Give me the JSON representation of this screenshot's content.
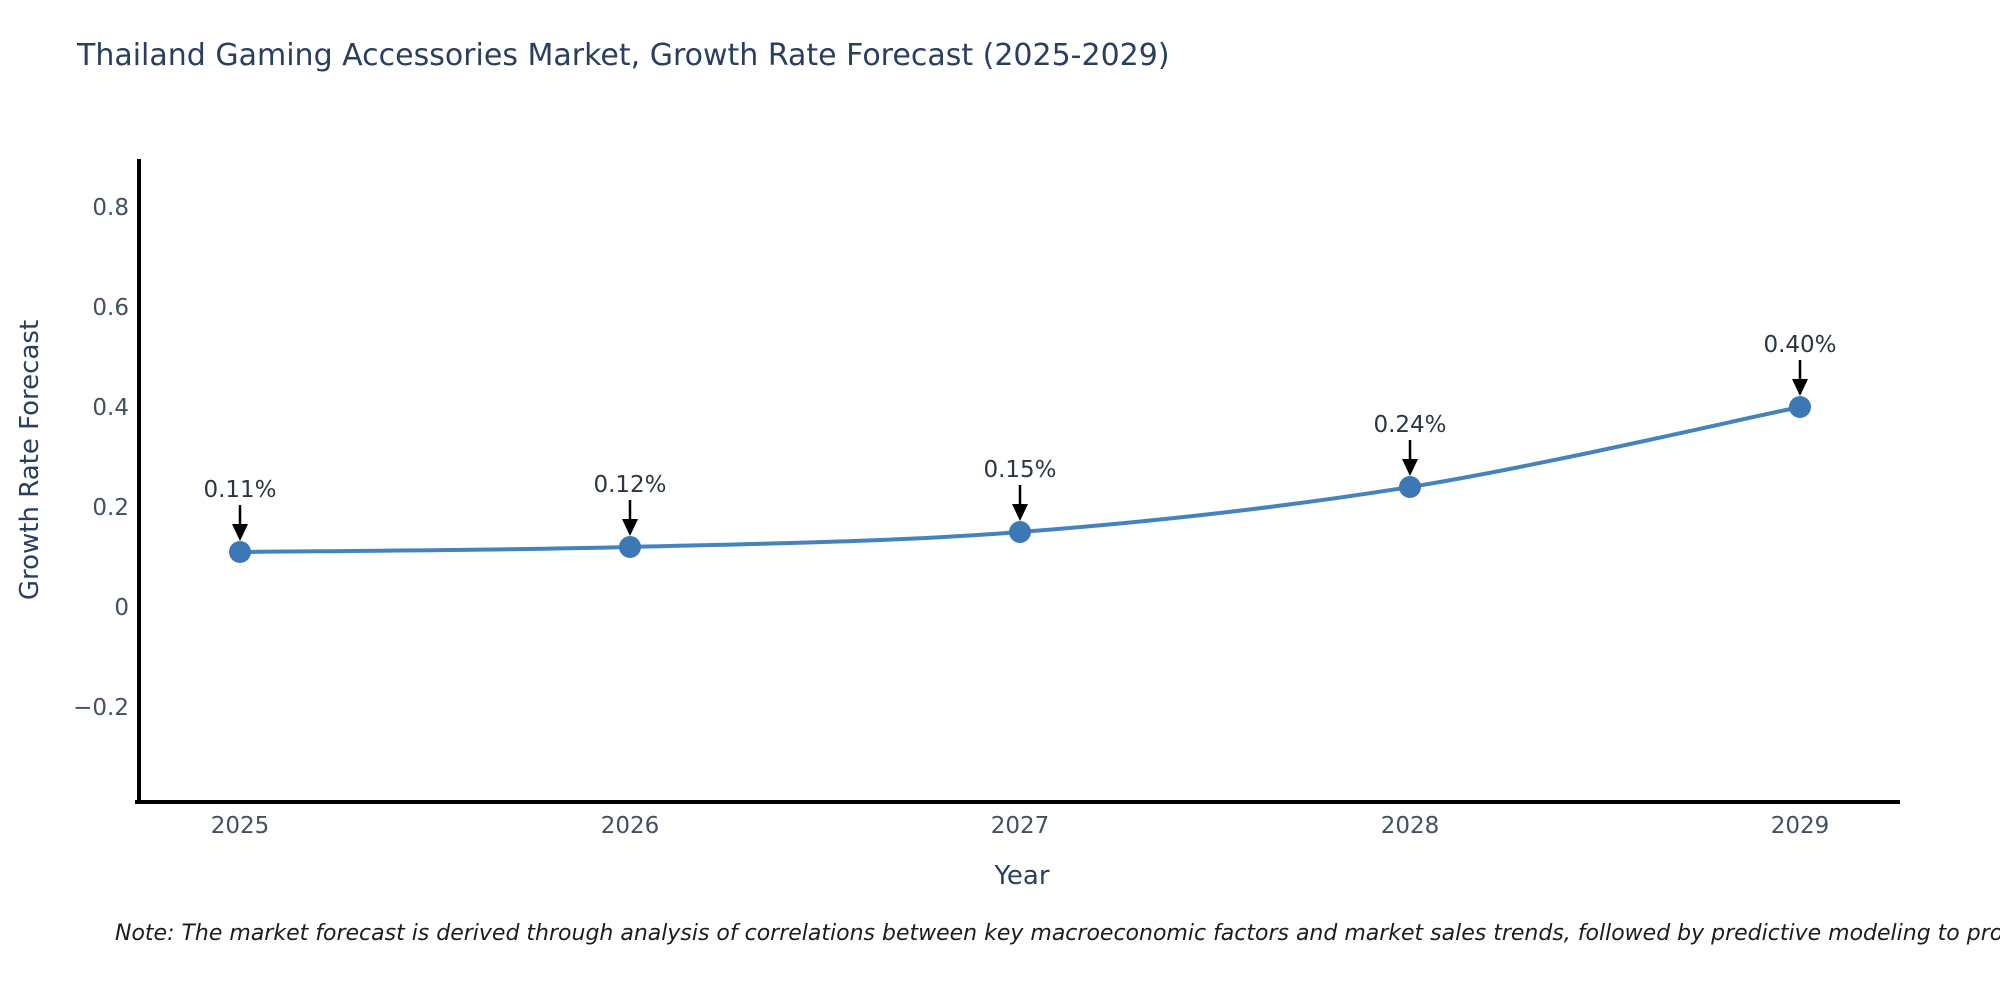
{
  "chart_data": {
    "type": "line",
    "title": "Thailand Gaming Accessories Market, Growth Rate Forecast (2025-2029)",
    "xlabel": "Year",
    "ylabel": "Growth Rate Forecast",
    "categories": [
      "2025",
      "2026",
      "2027",
      "2028",
      "2029"
    ],
    "series": [
      {
        "name": "Growth Rate Forecast",
        "values": [
          0.11,
          0.12,
          0.15,
          0.24,
          0.4
        ],
        "point_labels": [
          "0.11%",
          "0.12%",
          "0.15%",
          "0.24%",
          "0.40%"
        ]
      }
    ],
    "y_ticks": [
      0.8,
      0.6,
      0.4,
      0.2,
      0,
      -0.2
    ],
    "y_tick_labels": [
      "0.8",
      "0.6",
      "0.4",
      "0.2",
      "0",
      "−0.2"
    ],
    "ylim": [
      -0.39,
      0.9
    ],
    "grid": false,
    "legend_position": "none",
    "line_color": "#4583bd",
    "marker_color": "#3b78b5",
    "arrow_color": "#000000",
    "axis_color": "#000000",
    "note": "Note: The market forecast is derived through analysis of correlations between key macroeconomic factors and market sales trends, followed by predictive modeling to project future sa"
  }
}
